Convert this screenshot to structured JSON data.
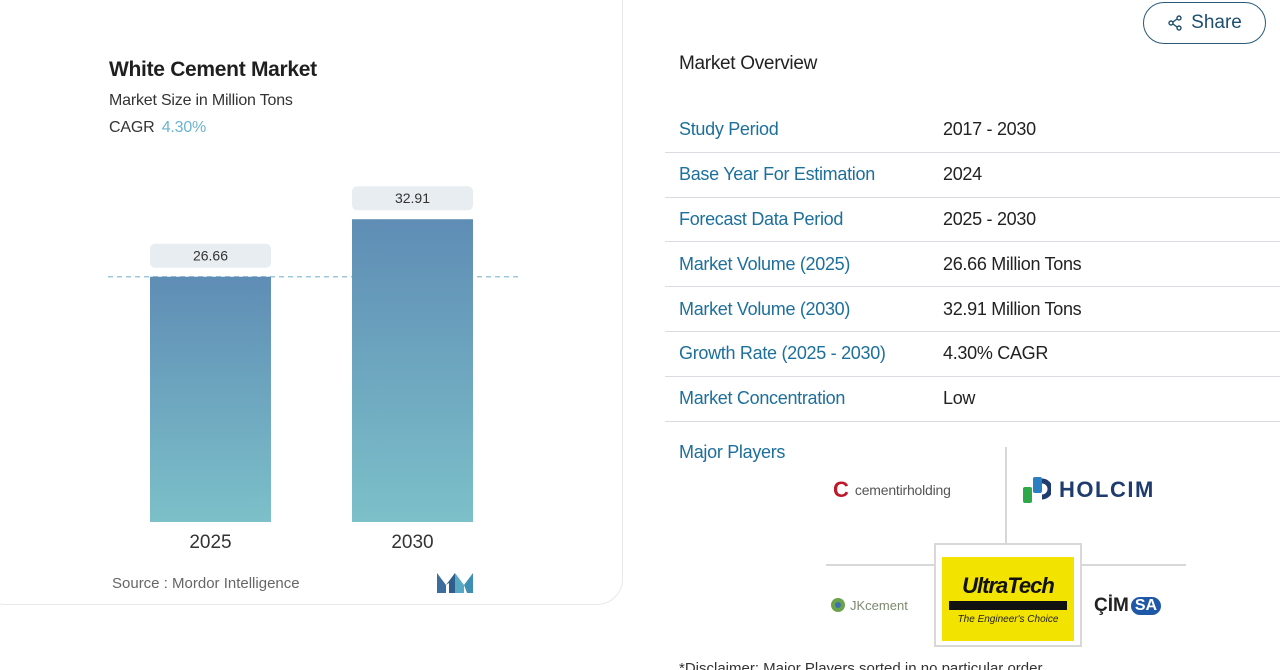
{
  "chart_data": {
    "type": "bar",
    "title": "White Cement Market",
    "subtitle": "Market Size in Million Tons",
    "cagr_label": "CAGR",
    "cagr_value": "4.30%",
    "categories": [
      "2025",
      "2030"
    ],
    "values": [
      26.66,
      32.91
    ],
    "value_labels": [
      "26.66",
      "32.91"
    ],
    "ylim": [
      0,
      35
    ],
    "reference_line_value": 26.66,
    "colors": {
      "bar_top": "#5f8db5",
      "bar_bottom": "#7cc0c9",
      "label_bg": "#e8edf1",
      "ref_line": "#9cc9dd"
    },
    "source": "Source :  Mordor Intelligence"
  },
  "share": {
    "label": "Share",
    "icon": "share-icon"
  },
  "overview": {
    "title": "Market Overview",
    "rows": [
      {
        "label": "Study Period",
        "value": "2017 - 2030"
      },
      {
        "label": "Base Year For Estimation",
        "value": "2024"
      },
      {
        "label": "Forecast Data Period",
        "value": "2025 - 2030"
      },
      {
        "label": "Market Volume (2025)",
        "value": "26.66 Million Tons"
      },
      {
        "label": "Market Volume (2030)",
        "value": "32.91 Million Tons"
      },
      {
        "label": "Growth Rate (2025 - 2030)",
        "value": "4.30% CAGR"
      },
      {
        "label": "Market Concentration",
        "value": "Low"
      }
    ]
  },
  "players": {
    "label": "Major Players",
    "logos": {
      "cementir_c": "C",
      "cementir_text": "cementirholding",
      "holcim": "HOLCIM",
      "jk": "JKcement",
      "ultratech": "UltraTech",
      "ultratech_tagline": "The Engineer's Choice",
      "cimsa_prefix": "ÇİM",
      "cimsa_suffix": "SA"
    }
  },
  "footnote": "*Disclaimer: Major Players sorted in no particular order"
}
